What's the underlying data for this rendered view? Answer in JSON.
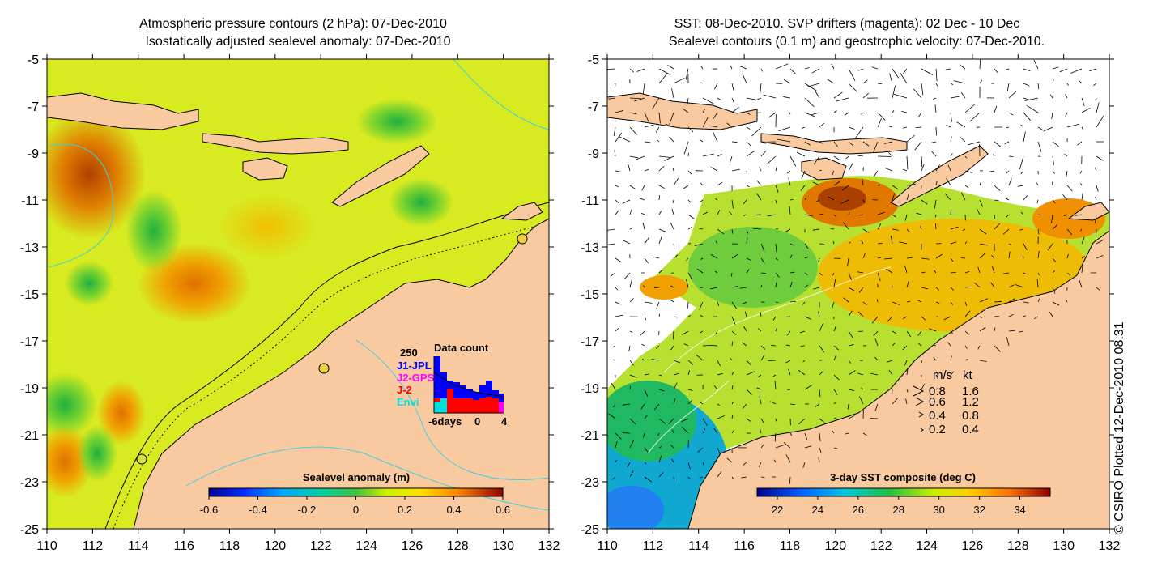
{
  "left_panel": {
    "title_line1": "Atmospheric pressure contours (2 hPa): 07-Dec-2010",
    "title_line2": "Isostatically adjusted sealevel anomaly: 07-Dec-2010",
    "colorbar": {
      "title": "Sealevel anomaly (m)",
      "ticks": [
        "-0.6",
        "-0.4",
        "-0.2",
        "0",
        "0.2",
        "0.4",
        "0.6"
      ],
      "range": [
        -0.6,
        0.6
      ]
    },
    "data_count": {
      "title": "Data count",
      "ymax_label": "250",
      "legend": [
        {
          "label": "J1-JPL",
          "color": "#0000ff"
        },
        {
          "label": "J2-GPS",
          "color": "#ff00ff"
        },
        {
          "label": "J-2",
          "color": "#ff0000"
        },
        {
          "label": "Envi",
          "color": "#00e0e0"
        }
      ],
      "xlabel": "-6days",
      "xticks": [
        "0",
        "4"
      ]
    }
  },
  "right_panel": {
    "title_line1": "SST: 08-Dec-2010. SVP drifters (magenta): 02 Dec - 10 Dec",
    "title_line2": "Sealevel contours (0.1 m) and geostrophic velocity: 07-Dec-2010.",
    "colorbar": {
      "title": "3-day SST composite (deg C)",
      "ticks": [
        "22",
        "24",
        "26",
        "28",
        "30",
        "32",
        "34"
      ],
      "range": [
        21,
        35.5
      ]
    },
    "velocity_key": {
      "header_ms": "m/s",
      "header_kt": "kt",
      "rows": [
        {
          "ms": "0.8",
          "kt": "1.6"
        },
        {
          "ms": "0.6",
          "kt": "1.2"
        },
        {
          "ms": "0.4",
          "kt": "0.8"
        },
        {
          "ms": "0.2",
          "kt": "0.4"
        }
      ]
    }
  },
  "axes": {
    "lon_ticks": [
      "110",
      "112",
      "114",
      "116",
      "118",
      "120",
      "122",
      "124",
      "126",
      "128",
      "130",
      "132"
    ],
    "lat_ticks": [
      "-5",
      "-7",
      "-9",
      "-11",
      "-13",
      "-15",
      "-17",
      "-19",
      "-21",
      "-23",
      "-25"
    ],
    "lon_range": [
      110,
      132
    ],
    "lat_range": [
      -25,
      -5
    ]
  },
  "credit": "© CSIRO Plotted 12-Dec-2010 08:31",
  "colors": {
    "land": "#f9c9a0",
    "coast": "#000000",
    "bathy": "#40d0e0",
    "frame": "#000000"
  }
}
